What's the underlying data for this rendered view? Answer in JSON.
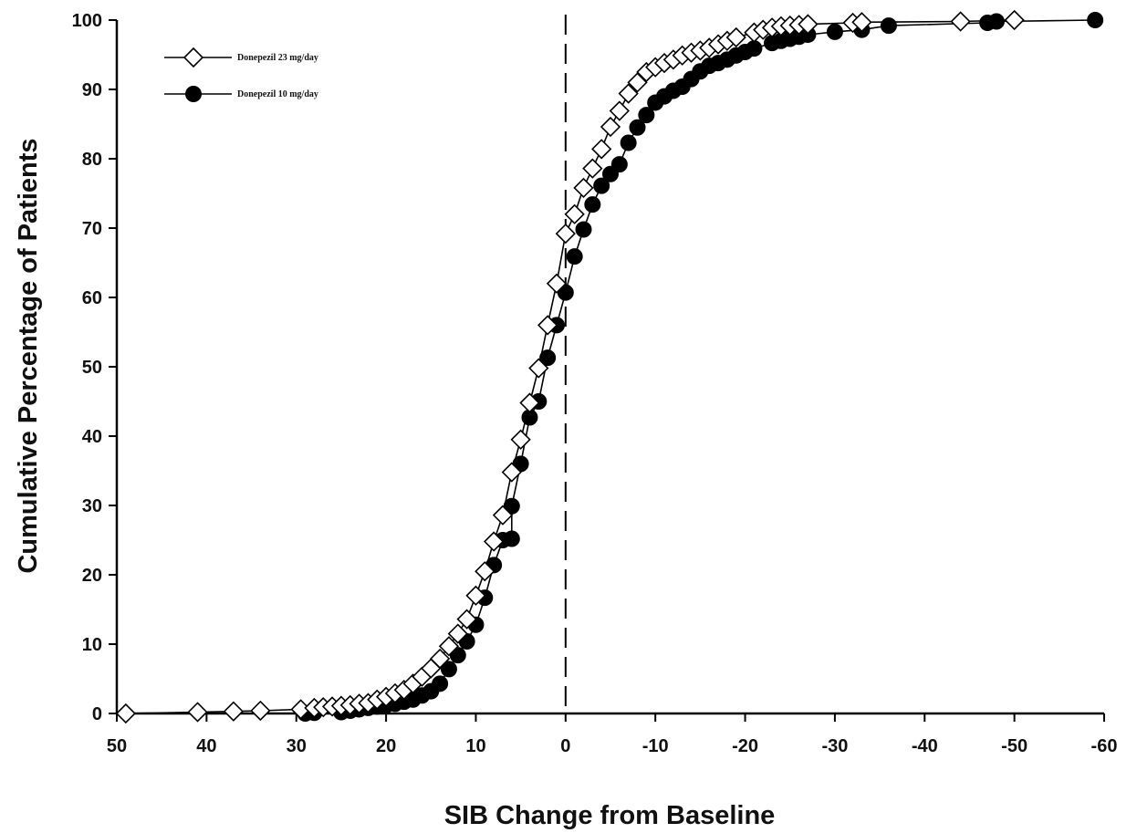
{
  "chart_data": {
    "type": "line",
    "title": "",
    "xlabel": "SIB Change from Baseline",
    "ylabel": "Cumulative Percentage of Patients",
    "xlim": [
      50,
      -60
    ],
    "ylim": [
      0,
      100
    ],
    "x_reversed": true,
    "xticks": [
      50,
      40,
      30,
      20,
      10,
      0,
      -10,
      -20,
      -30,
      -40,
      -50,
      -60
    ],
    "xtick_labels": [
      "50",
      "40",
      "30",
      "20",
      "10",
      "0",
      "-10",
      "-20",
      "-30",
      "-40",
      "-50",
      "-60"
    ],
    "yticks": [
      0,
      10,
      20,
      30,
      40,
      50,
      60,
      70,
      80,
      90,
      100
    ],
    "ytick_labels": [
      "0",
      "10",
      "20",
      "30",
      "40",
      "50",
      "60",
      "70",
      "80",
      "90",
      "100"
    ],
    "reference_line": {
      "x": 0,
      "style": "dashed"
    },
    "grid": false,
    "legend_position": "top-left",
    "series": [
      {
        "name": "Donepezil 23 mg/day",
        "marker": "diamond-open",
        "color": "#000000",
        "points": [
          [
            49,
            0
          ],
          [
            41,
            0.2
          ],
          [
            37,
            0.3
          ],
          [
            34,
            0.4
          ],
          [
            29.5,
            0.6
          ],
          [
            28,
            0.8
          ],
          [
            27,
            0.9
          ],
          [
            26,
            1.0
          ],
          [
            25,
            1.1
          ],
          [
            24,
            1.2
          ],
          [
            23,
            1.4
          ],
          [
            22,
            1.5
          ],
          [
            21,
            2.0
          ],
          [
            20,
            2.4
          ],
          [
            19,
            2.9
          ],
          [
            18,
            3.4
          ],
          [
            17,
            4.3
          ],
          [
            16,
            5.3
          ],
          [
            15,
            6.5
          ],
          [
            14,
            7.9
          ],
          [
            13,
            9.7
          ],
          [
            12,
            11.5
          ],
          [
            11,
            13.6
          ],
          [
            10,
            17.0
          ],
          [
            9,
            20.5
          ],
          [
            8,
            24.8
          ],
          [
            7,
            28.6
          ],
          [
            6,
            34.8
          ],
          [
            5,
            39.5
          ],
          [
            4,
            44.8
          ],
          [
            3,
            49.8
          ],
          [
            2,
            56.0
          ],
          [
            1,
            62.0
          ],
          [
            0,
            69.2
          ],
          [
            -1,
            72.0
          ],
          [
            -2,
            75.8
          ],
          [
            -3,
            78.6
          ],
          [
            -4,
            81.4
          ],
          [
            -5,
            84.6
          ],
          [
            -6,
            86.9
          ],
          [
            -7,
            89.4
          ],
          [
            -8,
            91.0
          ],
          [
            -9,
            92.5
          ],
          [
            -10,
            93.2
          ],
          [
            -11,
            93.8
          ],
          [
            -12,
            94.3
          ],
          [
            -13,
            94.9
          ],
          [
            -14,
            95.3
          ],
          [
            -15,
            95.6
          ],
          [
            -16,
            96.0
          ],
          [
            -17,
            96.5
          ],
          [
            -18,
            97.0
          ],
          [
            -19,
            97.5
          ],
          [
            -21,
            98.2
          ],
          [
            -22,
            98.6
          ],
          [
            -23,
            98.9
          ],
          [
            -24,
            99.1
          ],
          [
            -25,
            99.2
          ],
          [
            -26,
            99.3
          ],
          [
            -27,
            99.4
          ],
          [
            -32,
            99.6
          ],
          [
            -33,
            99.7
          ],
          [
            -44,
            99.8
          ],
          [
            -50,
            100
          ]
        ]
      },
      {
        "name": "Donepezil 10 mg/day",
        "marker": "circle-filled",
        "color": "#000000",
        "points": [
          [
            29,
            0
          ],
          [
            28,
            0.1
          ],
          [
            25,
            0.2
          ],
          [
            24,
            0.4
          ],
          [
            23,
            0.6
          ],
          [
            22,
            0.8
          ],
          [
            21,
            1.0
          ],
          [
            20,
            1.2
          ],
          [
            19,
            1.4
          ],
          [
            18,
            1.7
          ],
          [
            17,
            2.0
          ],
          [
            16,
            2.6
          ],
          [
            15,
            3.2
          ],
          [
            14,
            4.3
          ],
          [
            13,
            6.4
          ],
          [
            12,
            8.4
          ],
          [
            11,
            10.4
          ],
          [
            10,
            12.8
          ],
          [
            9,
            16.7
          ],
          [
            8,
            21.4
          ],
          [
            7,
            25.0
          ],
          [
            6,
            25.2
          ],
          [
            6,
            29.9
          ],
          [
            5,
            36.0
          ],
          [
            4,
            42.7
          ],
          [
            3,
            45.0
          ],
          [
            2,
            51.3
          ],
          [
            1,
            56.0
          ],
          [
            0,
            60.7
          ],
          [
            -1,
            65.9
          ],
          [
            -2,
            69.8
          ],
          [
            -3,
            73.4
          ],
          [
            -4,
            76.1
          ],
          [
            -5,
            77.8
          ],
          [
            -6,
            79.2
          ],
          [
            -7,
            82.3
          ],
          [
            -8,
            84.5
          ],
          [
            -9,
            86.3
          ],
          [
            -10,
            88.1
          ],
          [
            -11,
            89.0
          ],
          [
            -12,
            89.8
          ],
          [
            -13,
            90.4
          ],
          [
            -14,
            91.5
          ],
          [
            -15,
            92.6
          ],
          [
            -16,
            93.4
          ],
          [
            -17,
            93.8
          ],
          [
            -18,
            94.3
          ],
          [
            -19,
            94.9
          ],
          [
            -20,
            95.4
          ],
          [
            -21,
            95.9
          ],
          [
            -23,
            96.7
          ],
          [
            -24,
            97.0
          ],
          [
            -25,
            97.3
          ],
          [
            -26,
            97.6
          ],
          [
            -27,
            97.9
          ],
          [
            -30,
            98.3
          ],
          [
            -33,
            98.6
          ],
          [
            -36,
            99.2
          ],
          [
            -47,
            99.6
          ],
          [
            -48,
            99.8
          ],
          [
            -59,
            100
          ]
        ]
      }
    ]
  }
}
